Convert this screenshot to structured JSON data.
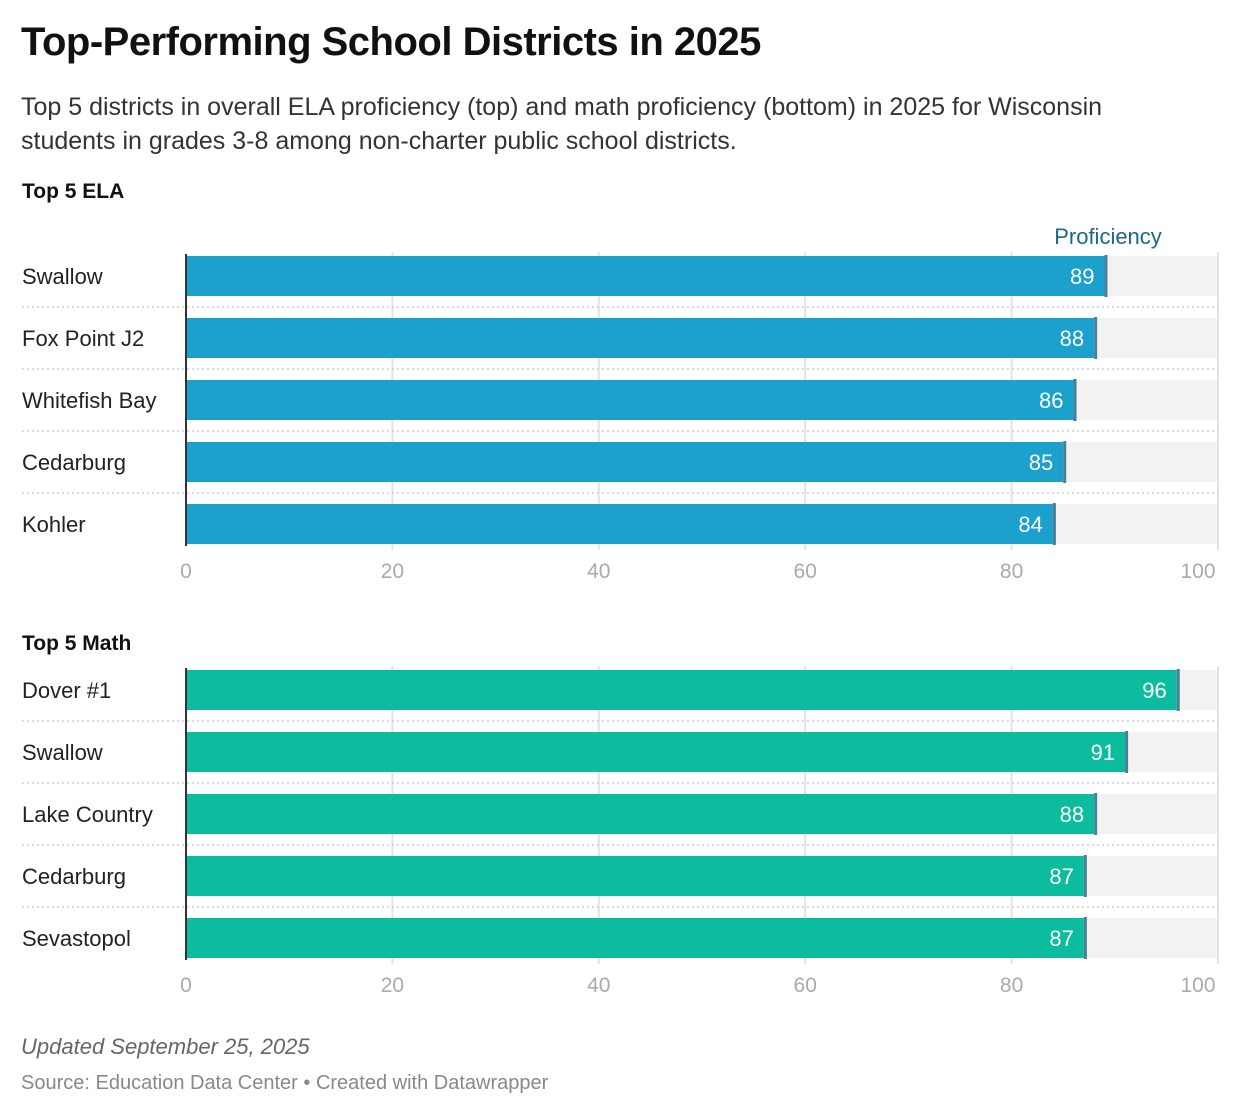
{
  "title": "Top-Performing School Districts in 2025",
  "subtitle": "Top 5 districts in overall ELA proficiency (top) and math proficiency (bottom) in 2025 for Wisconsin students in grades 3-8 among non-charter public school districts.",
  "footer": {
    "updated": "Updated September 25, 2025",
    "source": "Source: Education Data Center • Created with Datawrapper"
  },
  "colors": {
    "ela": "#1ba1cc",
    "math": "#0bbc9f",
    "track": "#f2f2f2",
    "marker": "#4a7f99",
    "legend": "#1a6a86"
  },
  "chart_data": [
    {
      "type": "bar",
      "title": "Top 5 ELA",
      "legend": "Proficiency",
      "categories": [
        "Swallow",
        "Fox Point J2",
        "Whitefish Bay",
        "Cedarburg",
        "Kohler"
      ],
      "values": [
        89,
        88,
        86,
        85,
        84
      ],
      "xlim": [
        0,
        100
      ],
      "ticks": [
        0,
        20,
        40,
        60,
        80,
        100
      ]
    },
    {
      "type": "bar",
      "title": "Top 5 Math",
      "categories": [
        "Dover #1",
        "Swallow",
        "Lake Country",
        "Cedarburg",
        "Sevastopol"
      ],
      "values": [
        96,
        91,
        88,
        87,
        87
      ],
      "xlim": [
        0,
        100
      ],
      "ticks": [
        0,
        20,
        40,
        60,
        80,
        100
      ]
    }
  ]
}
